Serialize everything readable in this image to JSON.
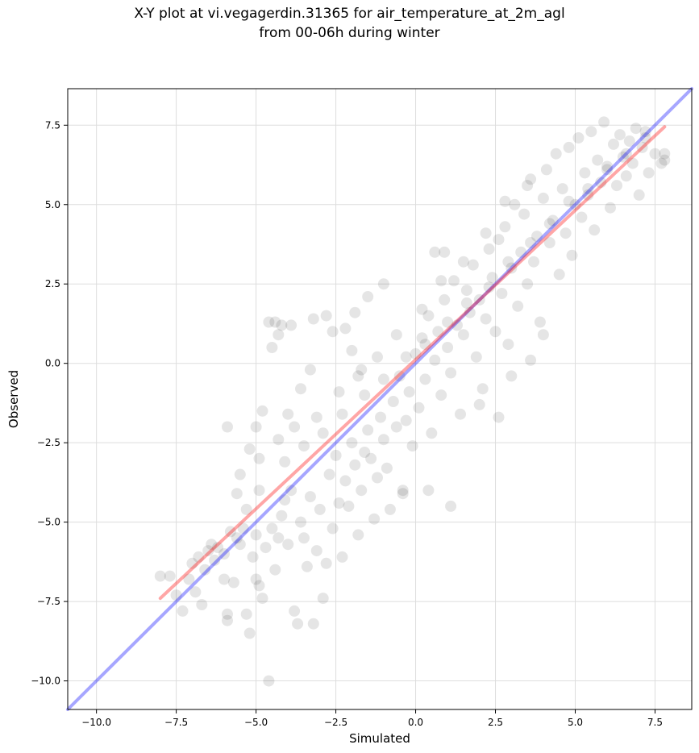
{
  "chart_data": {
    "type": "scatter",
    "title_line1": "X-Y plot at vi.vegagerdin.31365 for air_temperature_at_2m_agl",
    "title_line2": "from 00-06h during winter",
    "xlabel": "Simulated",
    "ylabel": "Observed",
    "xlim": [
      -10.9,
      8.65
    ],
    "ylim": [
      -10.9,
      8.65
    ],
    "xticks": [
      -10.0,
      -7.5,
      -5.0,
      -2.5,
      0.0,
      2.5,
      5.0,
      7.5
    ],
    "yticks": [
      -10.0,
      -7.5,
      -5.0,
      -2.5,
      0.0,
      2.5,
      5.0,
      7.5
    ],
    "xtick_labels": [
      "−10.0",
      "−7.5",
      "−5.0",
      "−2.5",
      "0.0",
      "2.5",
      "5.0",
      "7.5"
    ],
    "ytick_labels": [
      "−10.0",
      "−7.5",
      "−5.0",
      "−2.5",
      "0.0",
      "2.5",
      "5.0",
      "7.5"
    ],
    "grid": true,
    "colors": {
      "points": "#000000",
      "identity_line": "#0000ff",
      "fit_line": "#ff0000"
    },
    "reference_lines": [
      {
        "kind": "identity",
        "x": [
          -10.9,
          8.65
        ],
        "y": [
          -10.9,
          8.65
        ]
      },
      {
        "kind": "fit",
        "x": [
          -8.0,
          7.8
        ],
        "y": [
          -7.4,
          7.45
        ]
      }
    ],
    "point_description_count": 1400,
    "points": [
      [
        -8.0,
        -6.7
      ],
      [
        -7.7,
        -6.7
      ],
      [
        -7.5,
        -7.3
      ],
      [
        -7.3,
        -7.8
      ],
      [
        -7.1,
        -6.8
      ],
      [
        -7.0,
        -6.3
      ],
      [
        -6.9,
        -7.2
      ],
      [
        -6.8,
        -6.1
      ],
      [
        -6.7,
        -7.6
      ],
      [
        -6.6,
        -6.5
      ],
      [
        -6.5,
        -5.9
      ],
      [
        -6.3,
        -6.2
      ],
      [
        -6.2,
        -5.8
      ],
      [
        -6.0,
        -6.0
      ],
      [
        -5.9,
        -8.1
      ],
      [
        -5.9,
        -7.9
      ],
      [
        -5.8,
        -5.3
      ],
      [
        -5.7,
        -6.9
      ],
      [
        -5.6,
        -5.5
      ],
      [
        -5.5,
        -5.7
      ],
      [
        -5.4,
        -5.2
      ],
      [
        -5.3,
        -7.9
      ],
      [
        -5.2,
        -8.5
      ],
      [
        -5.1,
        -6.1
      ],
      [
        -5.0,
        -6.8
      ],
      [
        -5.0,
        -5.4
      ],
      [
        -4.9,
        -7.0
      ],
      [
        -4.8,
        -7.4
      ],
      [
        -4.7,
        -5.8
      ],
      [
        -4.6,
        -10.0
      ],
      [
        -4.5,
        -5.2
      ],
      [
        -4.4,
        -6.5
      ],
      [
        -4.3,
        -5.5
      ],
      [
        -4.2,
        -4.8
      ],
      [
        -4.1,
        -4.3
      ],
      [
        -4.0,
        -5.7
      ],
      [
        -3.9,
        -4.0
      ],
      [
        -3.8,
        -7.8
      ],
      [
        -3.7,
        -8.2
      ],
      [
        -3.6,
        -5.0
      ],
      [
        -3.5,
        -5.5
      ],
      [
        -3.4,
        -6.4
      ],
      [
        -3.3,
        -4.2
      ],
      [
        -3.2,
        -8.2
      ],
      [
        -3.1,
        -5.9
      ],
      [
        -3.0,
        -4.6
      ],
      [
        -2.9,
        -7.4
      ],
      [
        -2.8,
        -6.3
      ],
      [
        -2.7,
        -3.5
      ],
      [
        -2.6,
        -5.2
      ],
      [
        -2.5,
        -2.9
      ],
      [
        -2.4,
        -4.4
      ],
      [
        -2.3,
        -6.1
      ],
      [
        -2.2,
        -3.7
      ],
      [
        -2.1,
        -4.5
      ],
      [
        -2.0,
        -2.5
      ],
      [
        -1.9,
        -3.2
      ],
      [
        -1.8,
        -5.4
      ],
      [
        -1.7,
        -4.0
      ],
      [
        -1.6,
        -2.8
      ],
      [
        -1.5,
        -2.1
      ],
      [
        -1.4,
        -3.0
      ],
      [
        -1.3,
        -4.9
      ],
      [
        -1.2,
        -3.6
      ],
      [
        -1.1,
        -1.7
      ],
      [
        -1.0,
        -2.4
      ],
      [
        -0.9,
        -3.3
      ],
      [
        -0.8,
        -4.6
      ],
      [
        -0.7,
        -1.2
      ],
      [
        -0.6,
        -2.0
      ],
      [
        -0.5,
        -0.4
      ],
      [
        -0.4,
        -4.1
      ],
      [
        -0.3,
        -1.8
      ],
      [
        -0.2,
        -0.9
      ],
      [
        -0.1,
        -2.6
      ],
      [
        0.0,
        0.3
      ],
      [
        0.1,
        -1.4
      ],
      [
        0.2,
        0.8
      ],
      [
        0.3,
        -0.5
      ],
      [
        0.4,
        1.5
      ],
      [
        0.5,
        -2.2
      ],
      [
        0.6,
        0.1
      ],
      [
        0.7,
        1.0
      ],
      [
        0.8,
        -1.0
      ],
      [
        0.9,
        2.0
      ],
      [
        1.0,
        0.5
      ],
      [
        1.1,
        -0.3
      ],
      [
        1.2,
        2.6
      ],
      [
        1.3,
        1.2
      ],
      [
        1.4,
        -1.6
      ],
      [
        1.5,
        0.9
      ],
      [
        1.6,
        2.3
      ],
      [
        1.7,
        1.6
      ],
      [
        1.8,
        3.1
      ],
      [
        1.9,
        0.2
      ],
      [
        2.0,
        2.0
      ],
      [
        2.1,
        -0.8
      ],
      [
        2.2,
        1.4
      ],
      [
        2.3,
        3.6
      ],
      [
        2.4,
        2.7
      ],
      [
        2.5,
        1.0
      ],
      [
        2.6,
        3.9
      ],
      [
        2.7,
        2.2
      ],
      [
        2.8,
        4.3
      ],
      [
        2.9,
        0.6
      ],
      [
        3.0,
        3.0
      ],
      [
        3.1,
        5.0
      ],
      [
        3.2,
        1.8
      ],
      [
        3.3,
        3.5
      ],
      [
        3.4,
        4.7
      ],
      [
        3.5,
        2.5
      ],
      [
        3.6,
        5.8
      ],
      [
        3.7,
        3.2
      ],
      [
        3.8,
        4.0
      ],
      [
        3.9,
        1.3
      ],
      [
        4.0,
        5.2
      ],
      [
        4.1,
        6.1
      ],
      [
        4.2,
        3.8
      ],
      [
        4.3,
        4.5
      ],
      [
        4.4,
        6.6
      ],
      [
        4.5,
        2.8
      ],
      [
        4.6,
        5.5
      ],
      [
        4.7,
        4.1
      ],
      [
        4.8,
        6.8
      ],
      [
        4.9,
        3.4
      ],
      [
        5.0,
        5.0
      ],
      [
        5.1,
        7.1
      ],
      [
        5.2,
        4.6
      ],
      [
        5.3,
        6.0
      ],
      [
        5.4,
        5.3
      ],
      [
        5.5,
        7.3
      ],
      [
        5.6,
        4.2
      ],
      [
        5.7,
        6.4
      ],
      [
        5.8,
        5.7
      ],
      [
        5.9,
        7.6
      ],
      [
        6.0,
        6.2
      ],
      [
        6.1,
        4.9
      ],
      [
        6.2,
        6.9
      ],
      [
        6.3,
        5.6
      ],
      [
        6.4,
        7.2
      ],
      [
        6.5,
        6.5
      ],
      [
        6.6,
        5.9
      ],
      [
        6.7,
        7.0
      ],
      [
        6.8,
        6.3
      ],
      [
        6.9,
        7.4
      ],
      [
        7.0,
        5.3
      ],
      [
        7.1,
        6.8
      ],
      [
        7.2,
        7.3
      ],
      [
        7.3,
        6.0
      ],
      [
        7.5,
        6.6
      ],
      [
        7.7,
        6.3
      ],
      [
        7.8,
        6.6
      ],
      [
        7.8,
        6.4
      ],
      [
        -4.6,
        1.3
      ],
      [
        -4.4,
        1.3
      ],
      [
        -4.2,
        1.2
      ],
      [
        -4.5,
        0.5
      ],
      [
        -4.3,
        0.9
      ],
      [
        -3.9,
        1.2
      ],
      [
        -3.2,
        1.4
      ],
      [
        -2.8,
        1.5
      ],
      [
        -2.6,
        1.0
      ],
      [
        -2.2,
        1.1
      ],
      [
        -1.9,
        1.6
      ],
      [
        -1.5,
        2.1
      ],
      [
        -1.0,
        2.5
      ],
      [
        -2.0,
        0.4
      ],
      [
        -1.7,
        -0.2
      ],
      [
        -3.3,
        -0.2
      ],
      [
        -3.6,
        -0.8
      ],
      [
        -4.0,
        -1.6
      ],
      [
        -4.8,
        -1.5
      ],
      [
        -5.0,
        -2.0
      ],
      [
        -5.2,
        -2.7
      ],
      [
        -5.9,
        -2.0
      ],
      [
        -5.5,
        -3.5
      ],
      [
        -4.9,
        -3.0
      ],
      [
        -4.3,
        -2.4
      ],
      [
        -3.8,
        -2.0
      ],
      [
        -3.1,
        -1.7
      ],
      [
        -2.4,
        -0.9
      ],
      [
        -1.8,
        -0.4
      ],
      [
        -1.2,
        0.2
      ],
      [
        -0.6,
        0.9
      ],
      [
        0.2,
        1.7
      ],
      [
        0.8,
        2.6
      ],
      [
        1.5,
        3.2
      ],
      [
        2.2,
        4.1
      ],
      [
        2.8,
        5.1
      ],
      [
        3.5,
        5.6
      ],
      [
        0.4,
        -4.0
      ],
      [
        1.1,
        -4.5
      ],
      [
        -0.4,
        -4.0
      ],
      [
        0.9,
        3.5
      ],
      [
        0.6,
        3.5
      ],
      [
        2.0,
        -1.3
      ],
      [
        2.6,
        -1.7
      ],
      [
        3.0,
        -0.4
      ],
      [
        3.6,
        0.1
      ],
      [
        4.0,
        0.9
      ],
      [
        -6.4,
        -5.7
      ],
      [
        -6.0,
        -6.8
      ],
      [
        -5.6,
        -4.1
      ],
      [
        -5.3,
        -4.6
      ],
      [
        -4.9,
        -4.0
      ],
      [
        -4.1,
        -3.1
      ],
      [
        -3.5,
        -2.6
      ],
      [
        -2.9,
        -2.2
      ],
      [
        -2.3,
        -1.6
      ],
      [
        -1.6,
        -1.0
      ],
      [
        -1.0,
        -0.5
      ],
      [
        -0.3,
        0.2
      ],
      [
        0.3,
        0.6
      ],
      [
        1.0,
        1.3
      ],
      [
        1.6,
        1.9
      ],
      [
        2.3,
        2.4
      ],
      [
        2.9,
        3.2
      ],
      [
        3.6,
        3.8
      ],
      [
        4.2,
        4.4
      ],
      [
        4.8,
        5.1
      ],
      [
        5.4,
        5.5
      ],
      [
        6.0,
        6.1
      ],
      [
        6.6,
        6.6
      ],
      [
        7.2,
        7.1
      ]
    ]
  }
}
